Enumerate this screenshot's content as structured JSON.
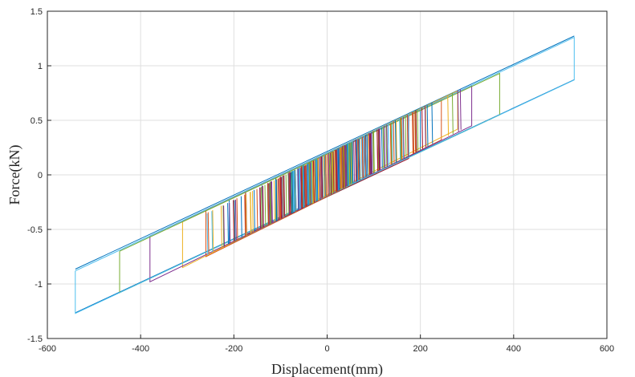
{
  "chart_data": {
    "type": "line",
    "title": "",
    "xlabel": "Displacement(mm)",
    "ylabel": "Force(kN)",
    "xlim": [
      -600,
      600
    ],
    "ylim": [
      -1.5,
      1.5
    ],
    "xticks": [
      -600,
      -400,
      -200,
      0,
      200,
      400,
      600
    ],
    "yticks": [
      -1.5,
      -1,
      -0.5,
      0,
      0.5,
      1,
      1.5
    ],
    "xtick_labels": [
      "-600",
      "-400",
      "-200",
      "0",
      "200",
      "400",
      "600"
    ],
    "ytick_labels": [
      "-1.5",
      "-1",
      "-0.5",
      "0",
      "0.5",
      "1",
      "1.5"
    ],
    "grid": true,
    "legend": "none",
    "envelope": {
      "slope_kN_per_mm": 0.0021,
      "upper_offset_kN": 0.2,
      "lower_offset_kN": -0.2
    },
    "colors": [
      "#0072BD",
      "#D95319",
      "#EDB120",
      "#7E2F8E",
      "#77AC30",
      "#4DBEEE",
      "#A2142F"
    ],
    "series": [
      {
        "x": [
          -10,
          10,
          10,
          -10,
          -10
        ],
        "y": [
          0.18,
          0.22,
          -0.18,
          -0.22,
          0.18
        ]
      },
      {
        "x": [
          -30,
          30,
          30,
          -30,
          -30
        ],
        "y": [
          0.14,
          0.26,
          -0.14,
          -0.26,
          0.14
        ]
      },
      {
        "x": [
          -55,
          55,
          55,
          -55,
          -55
        ],
        "y": [
          0.09,
          0.31,
          -0.09,
          -0.31,
          0.09
        ]
      },
      {
        "x": [
          -80,
          80,
          80,
          -80,
          -80
        ],
        "y": [
          0.04,
          0.36,
          -0.04,
          -0.36,
          0.04
        ]
      },
      {
        "x": [
          -110,
          110,
          110,
          -110,
          -110
        ],
        "y": [
          -0.02,
          0.42,
          0.02,
          -0.42,
          -0.02
        ]
      },
      {
        "x": [
          -140,
          140,
          140,
          -140,
          -140
        ],
        "y": [
          -0.08,
          0.48,
          0.08,
          -0.48,
          -0.08
        ]
      },
      {
        "x": [
          -175,
          175,
          175,
          -175,
          -175
        ],
        "y": [
          -0.15,
          0.55,
          0.15,
          -0.55,
          -0.15
        ]
      },
      {
        "x": [
          -210,
          200,
          200,
          -210,
          -210
        ],
        "y": [
          -0.22,
          0.6,
          0.22,
          -0.64,
          -0.22
        ]
      },
      {
        "x": [
          -260,
          245,
          245,
          -260,
          -260
        ],
        "y": [
          -0.32,
          0.69,
          0.32,
          -0.75,
          -0.32
        ]
      },
      {
        "x": [
          -310,
          280,
          280,
          -310,
          -310
        ],
        "y": [
          -0.43,
          0.77,
          0.42,
          -0.85,
          -0.43
        ]
      },
      {
        "x": [
          -380,
          310,
          310,
          -380,
          -380
        ],
        "y": [
          -0.56,
          0.82,
          0.45,
          -0.98,
          -0.56
        ]
      },
      {
        "x": [
          -445,
          370,
          370,
          -445,
          -445
        ],
        "y": [
          -0.7,
          0.93,
          0.55,
          -1.08,
          -0.7
        ]
      },
      {
        "x": [
          -540,
          530,
          530,
          -540,
          -540
        ],
        "y": [
          -0.88,
          1.26,
          0.87,
          -1.27,
          -0.88
        ]
      }
    ]
  }
}
